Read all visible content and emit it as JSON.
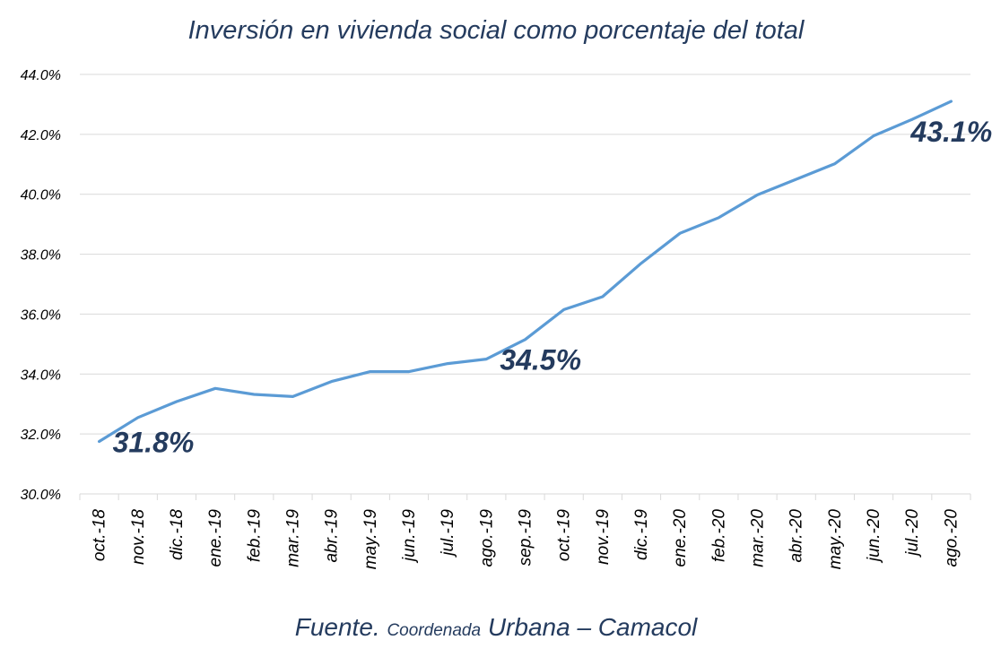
{
  "chart_data": {
    "type": "line",
    "title": "Inversión en vivienda social como porcentaje del total",
    "categories": [
      "oct.-18",
      "nov.-18",
      "dic.-18",
      "ene.-19",
      "feb.-19",
      "mar.-19",
      "abr.-19",
      "may.-19",
      "jun.-19",
      "jul.-19",
      "ago.-19",
      "sep.-19",
      "oct.-19",
      "nov.-19",
      "dic.-19",
      "ene.-20",
      "feb.-20",
      "mar.-20",
      "abr.-20",
      "may.-20",
      "jun.-20",
      "jul.-20",
      "ago.-20"
    ],
    "series": [
      {
        "values": [
          31.75,
          32.55,
          33.08,
          33.52,
          33.32,
          33.25,
          33.75,
          34.08,
          34.08,
          34.35,
          34.5,
          35.15,
          36.15,
          36.58,
          37.7,
          38.7,
          39.22,
          39.98,
          40.5,
          41.02,
          41.95,
          42.5,
          43.1
        ],
        "color": "#5b9bd5"
      }
    ],
    "ylim": [
      30.0,
      44.0
    ],
    "yticks": [
      "30.0%",
      "32.0%",
      "34.0%",
      "36.0%",
      "38.0%",
      "40.0%",
      "42.0%",
      "44.0%"
    ],
    "ytick_values": [
      30,
      32,
      34,
      36,
      38,
      40,
      42,
      44
    ],
    "grid": true,
    "annotations": [
      {
        "text": "31.8%",
        "index": 0
      },
      {
        "text": "34.5%",
        "index": 10
      },
      {
        "text": "43.1%",
        "index": 22
      }
    ]
  },
  "source": {
    "lead": "Fuente.",
    "small": "Coordenada",
    "tail": "Urbana – Camacol"
  }
}
